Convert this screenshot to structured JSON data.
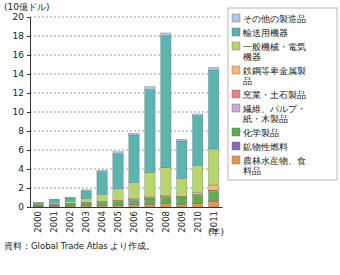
{
  "chart_data": {
    "type": "bar",
    "stacked": true,
    "grid": true,
    "y_label": "(10億ドル)",
    "x_label": "(年)",
    "annotations": [
      "資料：Global Trade Atlas より作成。"
    ],
    "categories": [
      "2000",
      "2001",
      "2002",
      "2003",
      "2004",
      "2005",
      "2006",
      "2007",
      "2008",
      "2009",
      "2010",
      "2011"
    ],
    "ylim": [
      0,
      20
    ],
    "yticks": [
      0,
      2,
      4,
      6,
      8,
      10,
      12,
      14,
      16,
      18,
      20
    ],
    "series": [
      {
        "name": "農林水産物、食料品",
        "color": "#e8944a",
        "values": [
          0.05,
          0.08,
          0.1,
          0.12,
          0.15,
          0.2,
          0.25,
          0.3,
          0.35,
          0.3,
          0.35,
          0.6
        ]
      },
      {
        "name": "鉱物性燃料",
        "color": "#8a6bb8",
        "values": [
          0.02,
          0.02,
          0.02,
          0.03,
          0.03,
          0.03,
          0.04,
          0.05,
          0.05,
          0.05,
          0.06,
          0.1
        ]
      },
      {
        "name": "化学製品",
        "color": "#5fae4e",
        "values": [
          0.1,
          0.15,
          0.2,
          0.25,
          0.3,
          0.35,
          0.4,
          0.5,
          0.6,
          0.6,
          0.8,
          0.9
        ]
      },
      {
        "name": "繊維、パルプ・紙・木製品",
        "color": "#c9a9d9",
        "values": [
          0.02,
          0.03,
          0.03,
          0.04,
          0.05,
          0.05,
          0.06,
          0.06,
          0.07,
          0.07,
          0.08,
          0.1
        ]
      },
      {
        "name": "窯業・土石製品",
        "color": "#ee7f86",
        "values": [
          0.01,
          0.01,
          0.02,
          0.02,
          0.03,
          0.03,
          0.04,
          0.05,
          0.05,
          0.04,
          0.05,
          0.06
        ]
      },
      {
        "name": "鉄鋼等卑金属製品",
        "color": "#f7b874",
        "values": [
          0.02,
          0.03,
          0.03,
          0.04,
          0.05,
          0.05,
          0.08,
          0.1,
          0.1,
          0.08,
          0.15,
          0.55
        ]
      },
      {
        "name": "一般機械・電気機器",
        "color": "#b8d46c",
        "values": [
          0.1,
          0.15,
          0.2,
          0.4,
          0.7,
          1.2,
          1.7,
          2.6,
          2.9,
          1.9,
          2.9,
          3.8
        ]
      },
      {
        "name": "輸送用機器",
        "color": "#5bb5ae",
        "values": [
          0.15,
          0.28,
          0.35,
          0.8,
          2.4,
          3.7,
          5.0,
          8.7,
          13.9,
          3.9,
          5.2,
          8.3
        ]
      },
      {
        "name": "その他の製造品",
        "color": "#a9c8ea",
        "values": [
          0.03,
          0.05,
          0.05,
          0.1,
          0.15,
          0.2,
          0.2,
          0.3,
          0.3,
          0.2,
          0.2,
          0.3
        ]
      }
    ]
  }
}
